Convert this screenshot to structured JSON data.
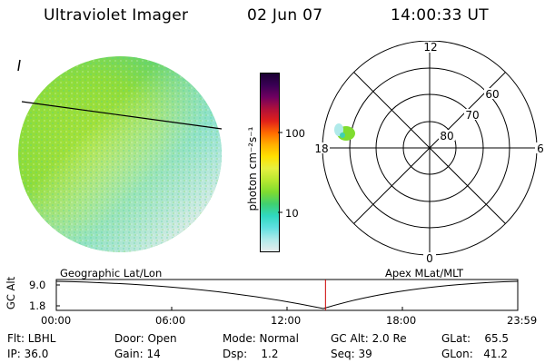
{
  "header": {
    "instrument": "Ultraviolet Imager",
    "date": "02 Jun 07",
    "time": "14:00:33 UT"
  },
  "colorbar": {
    "unit_label": "photon cm⁻²s⁻¹",
    "ticks": [
      {
        "label": "100",
        "value": 100
      },
      {
        "label": "10",
        "value": 10
      }
    ],
    "scale": "log",
    "colors": [
      "#1a0033",
      "#3a0055",
      "#700060",
      "#b0103a",
      "#e0201a",
      "#ff6a00",
      "#ffb000",
      "#ffe000",
      "#e6f040",
      "#b8e830",
      "#7fdc30",
      "#40d070",
      "#30d8c0",
      "#60e0e0",
      "#b0eaea",
      "#e6ecec"
    ]
  },
  "polar_plot": {
    "labels": {
      "top": "12",
      "bottom": "0",
      "left": "18",
      "right": "6",
      "lat60": "60",
      "lat70": "70",
      "lat80": "80"
    }
  },
  "timeline": {
    "left_label": "Geographic Lat/Lon",
    "right_label": "Apex MLat/MLT",
    "axis_title": "GC Alt",
    "y_ticks": [
      "9.0",
      "1.8"
    ],
    "x_ticks": [
      "00:00",
      "06:00",
      "12:00",
      "18:00",
      "23:59"
    ],
    "current_time_marker_hours": 14.0
  },
  "info": {
    "flt": "Flt: LBHL",
    "ip": "IP: 36.0",
    "door": "Door: Open",
    "gain": "Gain: 14",
    "mode": "Mode: Normal",
    "dsp": "Dsp:    1.2",
    "gcalt": "GC Alt: 2.0 Re",
    "seq": "Seq: 39",
    "glat": "GLat:    65.5",
    "glon": "GLon:   41.2"
  },
  "colors": {
    "marker": "#cc0000",
    "grid": "#000000"
  }
}
